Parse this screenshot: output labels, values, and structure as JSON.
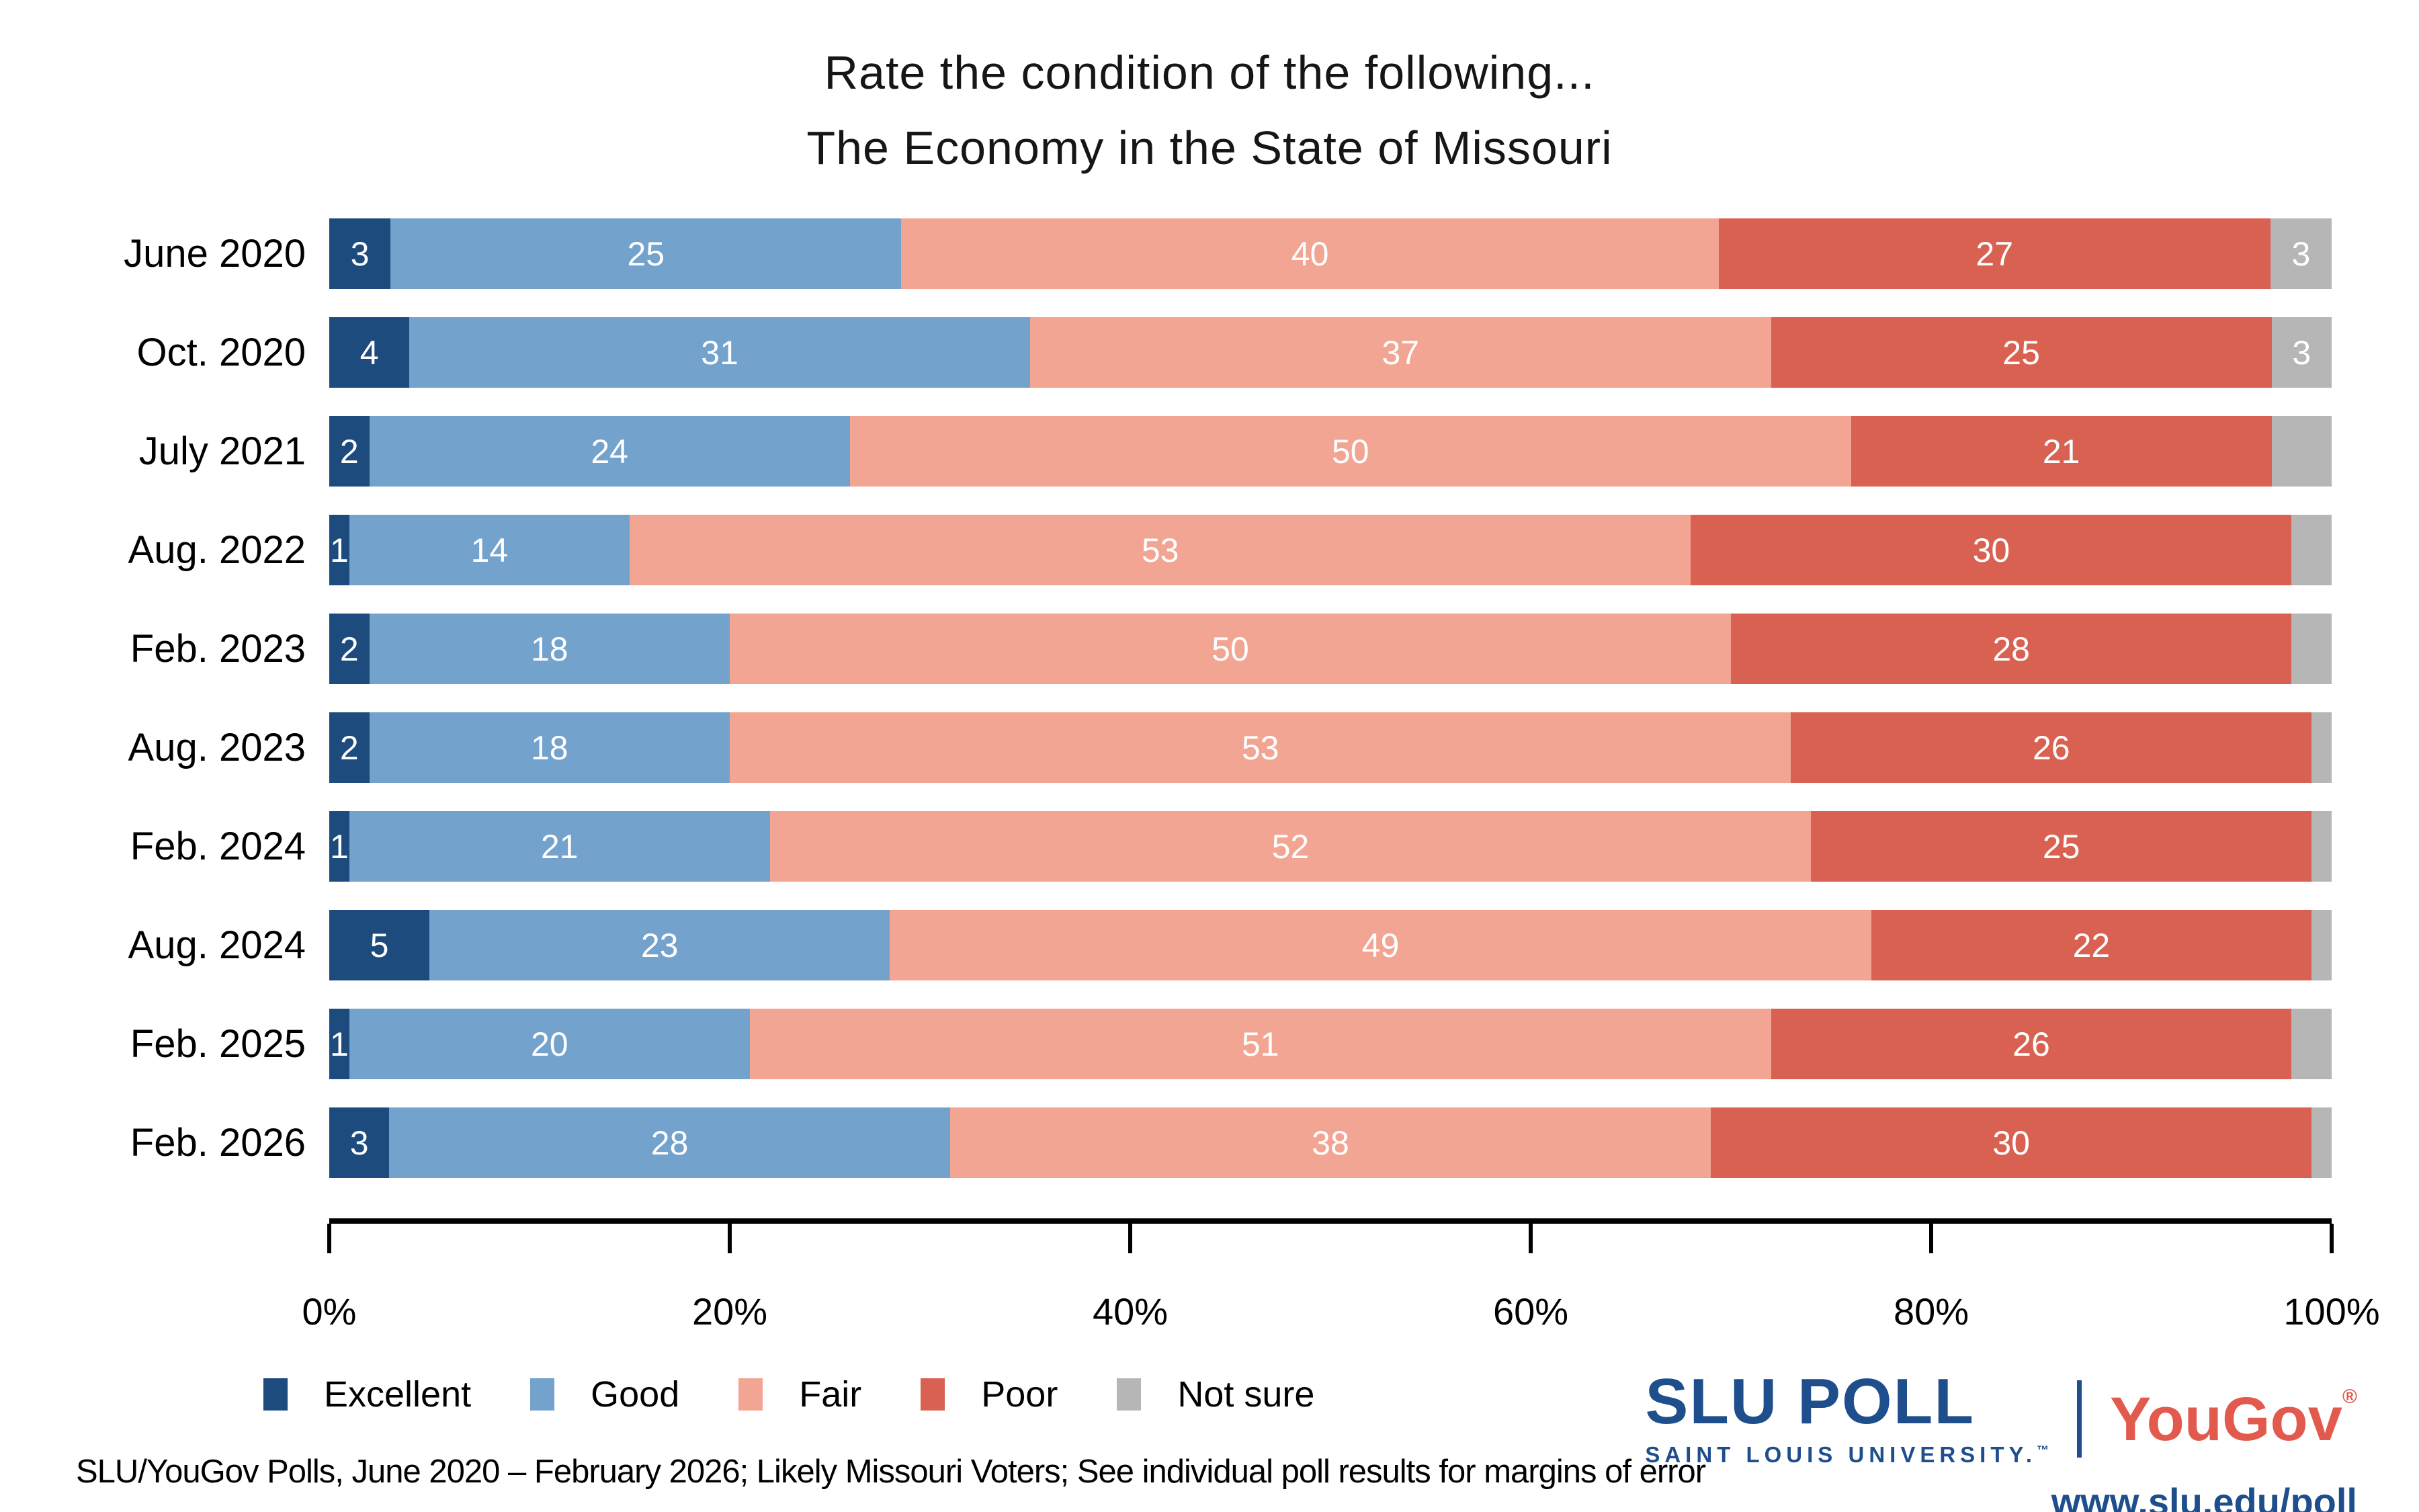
{
  "title": {
    "line1": "Rate the condition of the following...",
    "line2": "The Economy in the State of Missouri"
  },
  "chart_data": {
    "type": "bar",
    "stacked": true,
    "orientation": "horizontal",
    "title": "Rate the condition of the following... The Economy in the State of Missouri",
    "xlabel": "",
    "ylabel": "",
    "x_axis": {
      "range": [
        0,
        100
      ],
      "ticks": [
        "0%",
        "20%",
        "40%",
        "60%",
        "80%",
        "100%"
      ]
    },
    "legend_position": "bottom",
    "series_names": [
      "Excellent",
      "Good",
      "Fair",
      "Poor",
      "Not sure"
    ],
    "series_colors": [
      "#1d4b7e",
      "#73a2cc",
      "#f2a593",
      "#d96152",
      "#b6b6b6"
    ],
    "categories": [
      "June 2020",
      "Oct. 2020",
      "July 2021",
      "Aug. 2022",
      "Feb. 2023",
      "Aug. 2023",
      "Feb. 2024",
      "Aug. 2024",
      "Feb. 2025",
      "Feb. 2026"
    ],
    "rows": [
      {
        "category": "June 2020",
        "values": [
          3,
          25,
          40,
          27,
          3
        ],
        "labels": [
          "3",
          "25",
          "40",
          "27",
          "3"
        ]
      },
      {
        "category": "Oct. 2020",
        "values": [
          4,
          31,
          37,
          25,
          3
        ],
        "labels": [
          "4",
          "31",
          "37",
          "25",
          "3"
        ]
      },
      {
        "category": "July 2021",
        "values": [
          2,
          24,
          50,
          21,
          3
        ],
        "labels": [
          "2",
          "24",
          "50",
          "21",
          ""
        ]
      },
      {
        "category": "Aug. 2022",
        "values": [
          1,
          14,
          53,
          30,
          2
        ],
        "labels": [
          "1",
          "14",
          "53",
          "30",
          ""
        ]
      },
      {
        "category": "Feb. 2023",
        "values": [
          2,
          18,
          50,
          28,
          2
        ],
        "labels": [
          "2",
          "18",
          "50",
          "28",
          ""
        ]
      },
      {
        "category": "Aug. 2023",
        "values": [
          2,
          18,
          53,
          26,
          1
        ],
        "labels": [
          "2",
          "18",
          "53",
          "26",
          ""
        ]
      },
      {
        "category": "Feb. 2024",
        "values": [
          1,
          21,
          52,
          25,
          1
        ],
        "labels": [
          "1",
          "21",
          "52",
          "25",
          ""
        ]
      },
      {
        "category": "Aug. 2024",
        "values": [
          5,
          23,
          49,
          22,
          1
        ],
        "labels": [
          "5",
          "23",
          "49",
          "22",
          ""
        ]
      },
      {
        "category": "Feb. 2025",
        "values": [
          1,
          20,
          51,
          26,
          2
        ],
        "labels": [
          "1",
          "20",
          "51",
          "26",
          ""
        ]
      },
      {
        "category": "Feb. 2026",
        "values": [
          3,
          28,
          38,
          30,
          1
        ],
        "labels": [
          "3",
          "28",
          "38",
          "30",
          ""
        ]
      }
    ]
  },
  "footer": {
    "source": "SLU/YouGov Polls, June 2020 – February 2026; Likely Missouri Voters; See individual poll results for margins of error"
  },
  "branding": {
    "slu_poll": "SLU POLL",
    "slu_university": "SAINT LOUIS UNIVERSITY.",
    "trademark": "™",
    "yougov": "YouGov",
    "registered": "®",
    "url": "www.slu.edu/poll",
    "slu_color": "#1e4e8c",
    "yougov_color": "#e25a4e"
  }
}
